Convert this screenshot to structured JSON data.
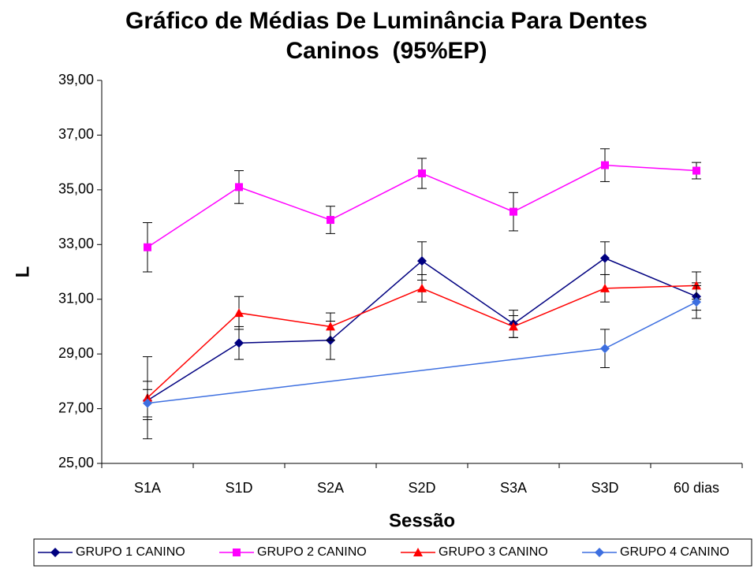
{
  "chart_data": {
    "type": "line",
    "title": "Gráfico de Médias De Luminância Para Dentes Caninos  (95%EP)",
    "x_label": "Sessão",
    "y_label": "L",
    "categories": [
      "S1A",
      "S1D",
      "S2A",
      "S2D",
      "S3A",
      "S3D",
      "60 dias"
    ],
    "connect_gaps": true,
    "series": [
      {
        "name": "GRUPO 1 CANINO",
        "color": "#000080",
        "marker": "diamond",
        "values": [
          27.3,
          29.4,
          29.5,
          32.4,
          30.1,
          32.5,
          31.1
        ],
        "errors": [
          0.7,
          0.6,
          0.7,
          0.7,
          0.5,
          0.6,
          0.5
        ]
      },
      {
        "name": "GRUPO 2 CANINO",
        "color": "#ff00ff",
        "marker": "square",
        "values": [
          32.9,
          35.1,
          33.9,
          35.6,
          34.2,
          35.9,
          35.7
        ],
        "errors": [
          0.9,
          0.6,
          0.5,
          0.55,
          0.7,
          0.6,
          0.3
        ]
      },
      {
        "name": "GRUPO 3 CANINO",
        "color": "#ff0000",
        "marker": "triangle",
        "values": [
          27.4,
          30.5,
          30.0,
          31.4,
          30.0,
          31.4,
          31.5
        ],
        "errors": [
          1.5,
          0.6,
          0.5,
          0.5,
          0.4,
          0.5,
          0.5
        ]
      },
      {
        "name": "GRUPO 4 CANINO",
        "color": "#3d6fe0",
        "marker": "diamond",
        "values": [
          27.2,
          null,
          null,
          null,
          null,
          29.2,
          30.9
        ],
        "errors": [
          0.5,
          null,
          null,
          null,
          null,
          0.7,
          0.6
        ]
      }
    ],
    "ylim": [
      25,
      39
    ],
    "yticks": [
      {
        "value": 25,
        "label": "25,00"
      },
      {
        "value": 27,
        "label": "27,00"
      },
      {
        "value": 29,
        "label": "29,00"
      },
      {
        "value": 31,
        "label": "31,00"
      },
      {
        "value": 33,
        "label": "33,00"
      },
      {
        "value": 35,
        "label": "35,00"
      },
      {
        "value": 37,
        "label": "37,00"
      },
      {
        "value": 39,
        "label": "39,00"
      }
    ],
    "grid": false,
    "legend": "bottom"
  }
}
